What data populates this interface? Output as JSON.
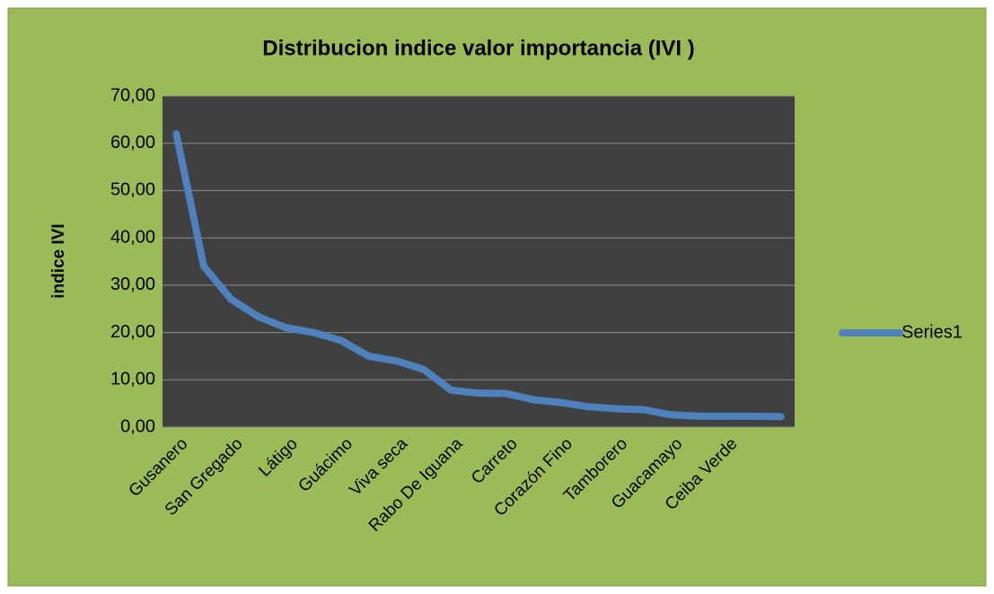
{
  "chart_data": {
    "type": "line",
    "title": "Distribucion indice valor importancia (IVI )",
    "y_label": "indice IVI",
    "categories": [
      "Gusanero",
      null,
      "San Gregado",
      null,
      "Látigo",
      null,
      "Guácimo",
      null,
      "Viva seca",
      null,
      "Rabo De Iguana",
      null,
      "Carreto",
      null,
      "Corazón Fino",
      null,
      "Tamborero",
      null,
      "Guacamayo",
      null,
      "Ceiba Verde",
      null,
      null
    ],
    "series": [
      {
        "name": "Series1",
        "color": "#4f81bd",
        "values": [
          62,
          34,
          27,
          23.3,
          21,
          20,
          18.3,
          15,
          14,
          12.2,
          7.8,
          7.2,
          7.1,
          5.8,
          5.2,
          4.3,
          3.9,
          3.7,
          2.6,
          2.3,
          2.3,
          2.3,
          2.2
        ]
      }
    ],
    "ylim": [
      0,
      70
    ],
    "yticks": [
      {
        "value": 0,
        "label": "0,00"
      },
      {
        "value": 10,
        "label": "10,00"
      },
      {
        "value": 20,
        "label": "20,00"
      },
      {
        "value": 30,
        "label": "30,00"
      },
      {
        "value": 40,
        "label": "40,00"
      },
      {
        "value": 50,
        "label": "50,00"
      },
      {
        "value": 60,
        "label": "60,00"
      },
      {
        "value": 70,
        "label": "70,00"
      }
    ],
    "grid": true,
    "legend": "right"
  }
}
